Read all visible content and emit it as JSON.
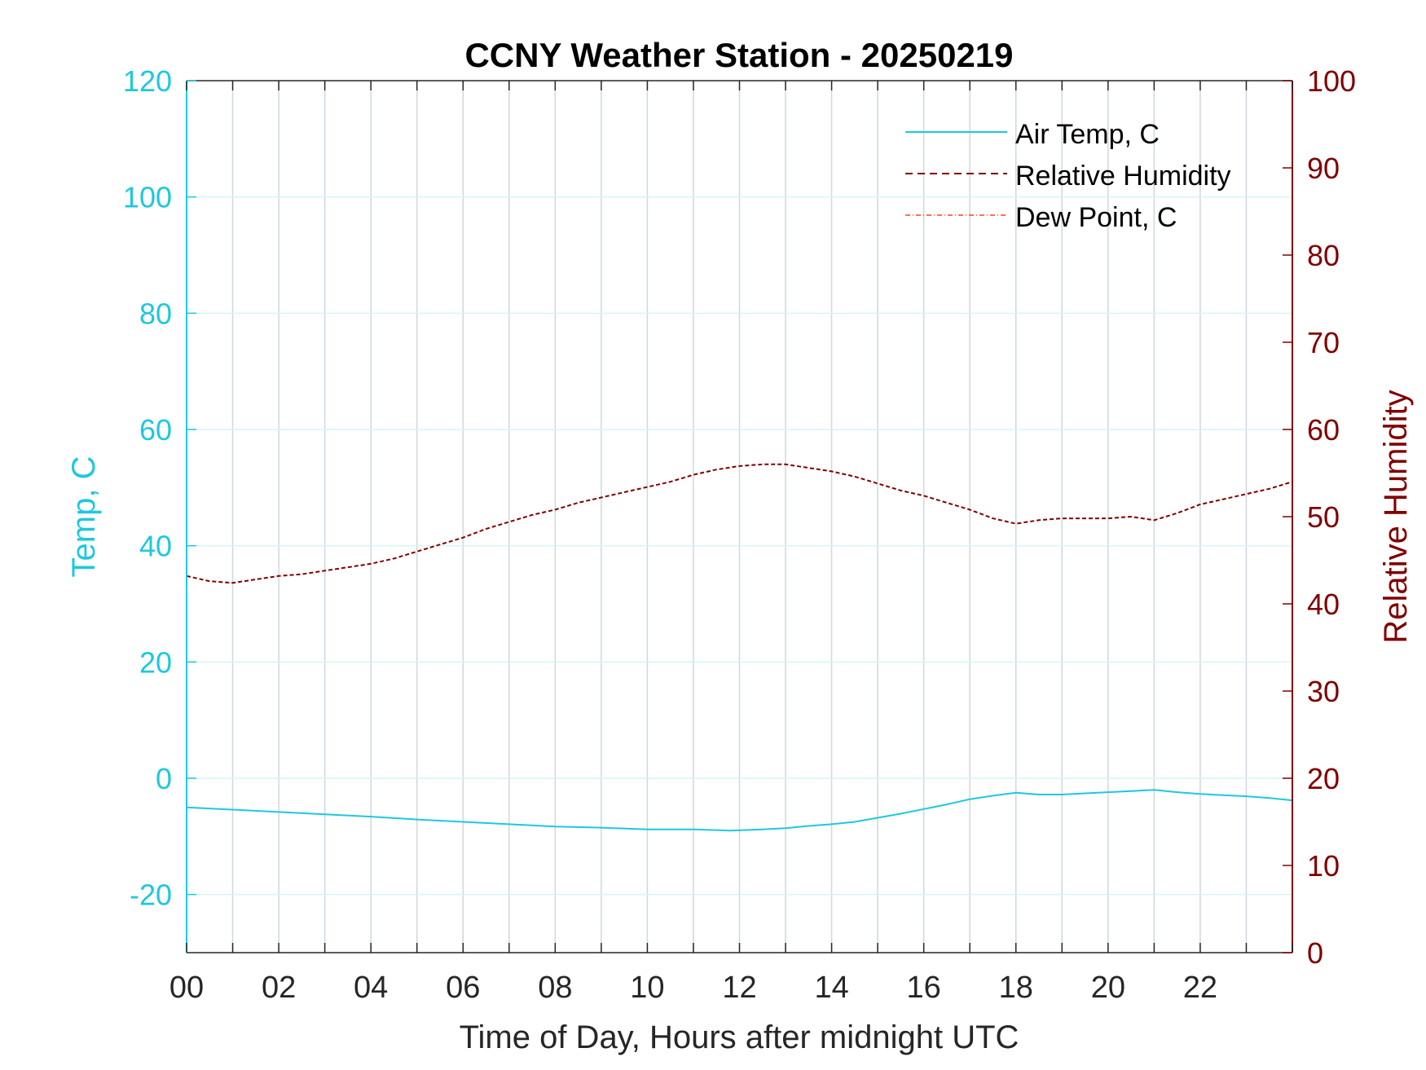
{
  "chart_data": {
    "type": "line",
    "title": "CCNY Weather Station - 20250219",
    "xlabel": "Time of Day, Hours after midnight UTC",
    "ylabel_left": "Temp, C",
    "ylabel_right": "Relative Humidity",
    "xlim": [
      0,
      24
    ],
    "ylim_left": [
      -30,
      120
    ],
    "ylim_right": [
      0,
      100
    ],
    "x_tick_labels": [
      "00",
      "02",
      "04",
      "06",
      "08",
      "10",
      "12",
      "14",
      "16",
      "18",
      "20",
      "22"
    ],
    "y_left_ticks": [
      -20,
      0,
      20,
      40,
      60,
      80,
      100,
      120
    ],
    "y_right_ticks": [
      0,
      10,
      20,
      30,
      40,
      50,
      60,
      70,
      80,
      90,
      100
    ],
    "grid": true,
    "legend_position": "top-right",
    "colors": {
      "air_temp": "#1EC8DE",
      "relative_humidity": "#800000",
      "dew_point": "#FF4020",
      "grid": "#D0D7DE",
      "grid_left": "#D6F4F8"
    },
    "series": [
      {
        "name": "Air Temp, C",
        "axis": "left",
        "style": "solid",
        "x": [
          0,
          1,
          2,
          3,
          4,
          5,
          6,
          7,
          8,
          9,
          10,
          11,
          11.8,
          12.5,
          13,
          13.5,
          14,
          14.5,
          15,
          15.5,
          16,
          16.5,
          17,
          17.5,
          18,
          18.5,
          19,
          19.5,
          20,
          20.5,
          21,
          21.5,
          22,
          22.5,
          23,
          23.5,
          24
        ],
        "values": [
          -5.0,
          -5.4,
          -5.8,
          -6.2,
          -6.6,
          -7.1,
          -7.5,
          -7.9,
          -8.3,
          -8.5,
          -8.8,
          -8.8,
          -9.0,
          -8.8,
          -8.6,
          -8.2,
          -7.9,
          -7.5,
          -6.8,
          -6.1,
          -5.3,
          -4.5,
          -3.6,
          -3.0,
          -2.5,
          -2.8,
          -2.8,
          -2.6,
          -2.4,
          -2.2,
          -2.0,
          -2.4,
          -2.7,
          -2.9,
          -3.1,
          -3.4,
          -3.8
        ]
      },
      {
        "name": "Relative Humidity",
        "axis": "right",
        "style": "dashed",
        "x": [
          0,
          0.5,
          1,
          1.5,
          2,
          2.5,
          3,
          3.5,
          4,
          4.5,
          5,
          5.5,
          6,
          6.5,
          7,
          7.5,
          8,
          8.5,
          9,
          9.5,
          10,
          10.5,
          11,
          11.5,
          12,
          12.5,
          13,
          13.5,
          14,
          14.5,
          15,
          15.5,
          16,
          16.5,
          17,
          17.5,
          18,
          18.5,
          19,
          19.5,
          20,
          20.5,
          21,
          21.5,
          22,
          22.5,
          23,
          23.5,
          24
        ],
        "values": [
          43.2,
          42.6,
          42.4,
          42.8,
          43.2,
          43.4,
          43.8,
          44.2,
          44.6,
          45.2,
          46.0,
          46.8,
          47.6,
          48.6,
          49.4,
          50.2,
          50.8,
          51.6,
          52.2,
          52.8,
          53.4,
          54.0,
          54.8,
          55.4,
          55.8,
          56.0,
          56.0,
          55.6,
          55.2,
          54.6,
          53.8,
          53.0,
          52.4,
          51.6,
          50.8,
          49.8,
          49.2,
          49.6,
          49.8,
          49.8,
          49.8,
          50.0,
          49.6,
          50.4,
          51.4,
          52.0,
          52.6,
          53.2,
          54.0
        ]
      },
      {
        "name": "Dew Point, C",
        "axis": "left",
        "style": "dashdot",
        "x": [],
        "values": []
      }
    ]
  }
}
